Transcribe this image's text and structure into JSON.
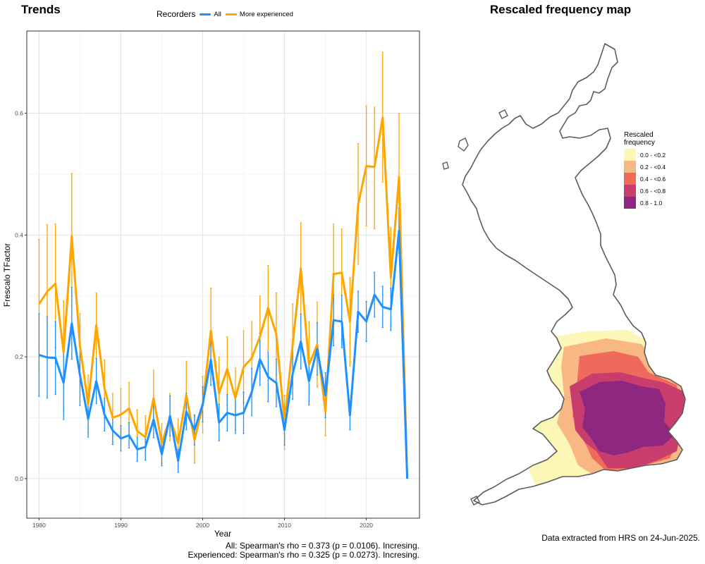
{
  "trends": {
    "title": "Trends",
    "legend": {
      "title": "Recorders",
      "items": [
        {
          "label": "All",
          "color": "#1e90ff"
        },
        {
          "label": "More experienced",
          "color": "#ffa500"
        }
      ]
    },
    "stats": [
      "All: Spearman's rho = 0.373 (p = 0.0106). Incresing.",
      "Experienced: Spearman's rho = 0.325 (p = 0.0273). Incresing."
    ]
  },
  "chart_data": [
    {
      "type": "line",
      "title": "Trends",
      "xlabel": "Year",
      "ylabel": "Frescalo TFactor",
      "xlim": [
        1978.5,
        2026.5
      ],
      "ylim": [
        -0.065,
        0.735
      ],
      "xticks": [
        1980,
        1990,
        2000,
        2010,
        2020
      ],
      "yticks": [
        0.0,
        0.2,
        0.4,
        0.6
      ],
      "ytick_labels": [
        "0.0",
        "0.2",
        "0.4",
        "0.6"
      ],
      "grid": true,
      "legend_position": "top",
      "x": [
        1980,
        1981,
        1982,
        1983,
        1984,
        1985,
        1986,
        1987,
        1988,
        1989,
        1990,
        1991,
        1992,
        1993,
        1994,
        1995,
        1996,
        1997,
        1998,
        1999,
        2000,
        2001,
        2002,
        2003,
        2004,
        2005,
        2006,
        2007,
        2008,
        2009,
        2010,
        2011,
        2012,
        2013,
        2014,
        2015,
        2016,
        2017,
        2018,
        2019,
        2020,
        2021,
        2022,
        2023,
        2024,
        2025
      ],
      "series": [
        {
          "name": "All",
          "color": "#1e90ff",
          "values": [
            0.203,
            0.199,
            0.198,
            0.157,
            0.255,
            0.17,
            0.098,
            0.16,
            0.105,
            0.079,
            0.066,
            0.071,
            0.048,
            0.052,
            0.097,
            0.04,
            0.103,
            0.029,
            0.11,
            0.08,
            0.122,
            0.195,
            0.092,
            0.108,
            0.104,
            0.108,
            0.142,
            0.196,
            0.167,
            0.157,
            0.08,
            0.172,
            0.225,
            0.16,
            0.213,
            0.137,
            0.26,
            0.258,
            0.104,
            0.274,
            0.258,
            0.302,
            0.282,
            0.278,
            0.407,
            0.0
          ],
          "lower": [
            0.135,
            0.132,
            0.138,
            0.097,
            0.196,
            0.12,
            0.068,
            0.123,
            0.078,
            0.056,
            0.045,
            0.05,
            0.028,
            0.03,
            0.067,
            0.021,
            0.07,
            0.01,
            0.08,
            0.055,
            0.093,
            0.153,
            0.062,
            0.078,
            0.074,
            0.074,
            0.103,
            0.153,
            0.126,
            0.118,
            0.055,
            0.13,
            0.18,
            0.122,
            0.17,
            0.1,
            0.218,
            0.215,
            0.08,
            0.24,
            0.225,
            0.265,
            0.248,
            0.243,
            0.37,
            0.0
          ],
          "upper": [
            0.271,
            0.266,
            0.258,
            0.217,
            0.314,
            0.218,
            0.128,
            0.197,
            0.132,
            0.102,
            0.087,
            0.092,
            0.068,
            0.074,
            0.127,
            0.059,
            0.136,
            0.048,
            0.14,
            0.105,
            0.151,
            0.237,
            0.122,
            0.138,
            0.134,
            0.142,
            0.181,
            0.239,
            0.208,
            0.196,
            0.105,
            0.214,
            0.27,
            0.198,
            0.256,
            0.174,
            0.302,
            0.301,
            0.128,
            0.308,
            0.291,
            0.339,
            0.316,
            0.313,
            0.444,
            0.0
          ]
        },
        {
          "name": "More experienced",
          "color": "#ffa500",
          "values": [
            0.287,
            0.307,
            0.32,
            0.207,
            0.398,
            0.218,
            0.122,
            0.252,
            0.148,
            0.1,
            0.105,
            0.115,
            0.078,
            0.068,
            0.132,
            0.058,
            0.1,
            0.058,
            0.137,
            0.063,
            0.12,
            0.243,
            0.14,
            0.18,
            0.132,
            0.183,
            0.198,
            0.233,
            0.28,
            0.237,
            0.093,
            0.22,
            0.345,
            0.187,
            0.22,
            0.11,
            0.336,
            0.338,
            0.258,
            0.45,
            0.513,
            0.512,
            0.593,
            0.33,
            0.495,
            0.0
          ],
          "lower": [
            0.18,
            0.2,
            0.215,
            0.11,
            0.3,
            0.16,
            0.075,
            0.198,
            0.1,
            0.06,
            0.065,
            0.072,
            0.04,
            0.03,
            0.088,
            0.025,
            0.062,
            0.02,
            0.09,
            0.025,
            0.075,
            0.175,
            0.08,
            0.12,
            0.08,
            0.125,
            0.14,
            0.163,
            0.21,
            0.17,
            0.048,
            0.152,
            0.27,
            0.12,
            0.15,
            0.07,
            0.262,
            0.262,
            0.185,
            0.352,
            0.415,
            0.41,
            0.487,
            0.25,
            0.39,
            0.0
          ],
          "upper": [
            0.393,
            0.417,
            0.418,
            0.292,
            0.501,
            0.271,
            0.17,
            0.305,
            0.195,
            0.14,
            0.148,
            0.158,
            0.113,
            0.103,
            0.178,
            0.09,
            0.14,
            0.098,
            0.193,
            0.103,
            0.168,
            0.313,
            0.2,
            0.233,
            0.182,
            0.243,
            0.258,
            0.3,
            0.35,
            0.305,
            0.137,
            0.287,
            0.42,
            0.258,
            0.29,
            0.152,
            0.418,
            0.41,
            0.33,
            0.55,
            0.612,
            0.61,
            0.7,
            0.412,
            0.6,
            0.0
          ]
        }
      ]
    }
  ],
  "map": {
    "title": "Rescaled frequency map",
    "legend_title_line1": "Rescaled",
    "legend_title_line2": "frequency",
    "classes": [
      {
        "label": "0.0 - <0.2",
        "color": "#fcf7b6"
      },
      {
        "label": "0.2 - <0.4",
        "color": "#f9b783"
      },
      {
        "label": "0.4 - <0.6",
        "color": "#f06a5b"
      },
      {
        "label": "0.6 - <0.8",
        "color": "#c93d6e"
      },
      {
        "label": "0.8 - 1.0",
        "color": "#8e2780"
      }
    ],
    "outline_color": "#5b5b5b",
    "note": "Data extracted from HRS on 24-Jun-2025."
  }
}
